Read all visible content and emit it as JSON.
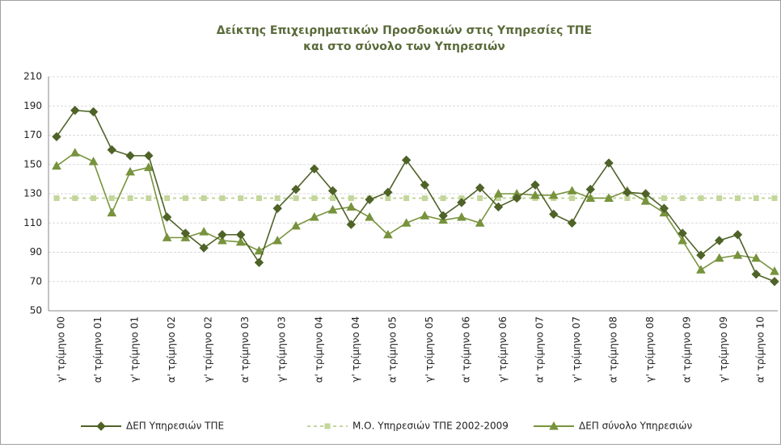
{
  "chart_data": {
    "type": "line",
    "title": [
      "Δείκτης Επιχειρηματικών Προσδοκιών στις Υπηρεσίες ΤΠΕ",
      "και στο σύνολο των Υπηρεσιών"
    ],
    "categories": [
      "γ' τρίμηνο 00",
      null,
      "α' τρίμηνο 01",
      null,
      "γ' τρίμηνο 01",
      null,
      "α' τρίμηνο 02",
      null,
      "γ' τρίμηνο 02",
      null,
      "α' τρίμηνο 03",
      null,
      "γ' τρίμηνο 03",
      null,
      "α' τρίμηνο 04",
      null,
      "γ' τρίμηνο 04",
      null,
      "α' τρίμηνο 05",
      null,
      "γ' τρίμηνο 05",
      null,
      "α' τρίμηνο 06",
      null,
      "γ' τρίμηνο 06",
      null,
      "α' τρίμηνο 07",
      null,
      "γ' τρίμηνο 07",
      null,
      "α' τρίμηνο 08",
      null,
      "γ' τρίμηνο 08",
      null,
      "α' τρίμηνο 09",
      null,
      "γ' τρίμηνο 09",
      null,
      "α' τρίμηνο 10",
      null
    ],
    "series": [
      {
        "name": "ΔΕΠ Υπηρεσιών ΤΠΕ",
        "color": "#4f6228",
        "marker": "diamond",
        "values": [
          169,
          187,
          186,
          160,
          156,
          156,
          114,
          103,
          93,
          102,
          102,
          83,
          120,
          133,
          147,
          132,
          109,
          126,
          131,
          153,
          136,
          115,
          124,
          134,
          121,
          127,
          136,
          116,
          110,
          133,
          151,
          131,
          130,
          120,
          103,
          88,
          98,
          102,
          75,
          70
        ]
      },
      {
        "name": "Μ.Ο. Υπηρεσιών ΤΠΕ 2002-2009",
        "color": "#c3d69b",
        "marker": "square",
        "dashed": true,
        "values": [
          127,
          127,
          127,
          127,
          127,
          127,
          127,
          127,
          127,
          127,
          127,
          127,
          127,
          127,
          127,
          127,
          127,
          127,
          127,
          127,
          127,
          127,
          127,
          127,
          127,
          127,
          127,
          127,
          127,
          127,
          127,
          127,
          127,
          127,
          127,
          127,
          127,
          127,
          127,
          127
        ]
      },
      {
        "name": "ΔΕΠ σύνολο Υπηρεσιών",
        "color": "#77933c",
        "marker": "triangle",
        "values": [
          149,
          158,
          152,
          117,
          145,
          148,
          100,
          100,
          104,
          98,
          97,
          91,
          98,
          108,
          114,
          119,
          121,
          114,
          102,
          110,
          115,
          112,
          114,
          110,
          130,
          130,
          129,
          129,
          132,
          127,
          127,
          132,
          125,
          117,
          98,
          78,
          86,
          88,
          86,
          77
        ]
      }
    ],
    "ylim": [
      50,
      210
    ],
    "yticks": [
      50,
      70,
      90,
      110,
      130,
      150,
      170,
      190,
      210
    ],
    "grid": true,
    "legend": "bottom"
  }
}
